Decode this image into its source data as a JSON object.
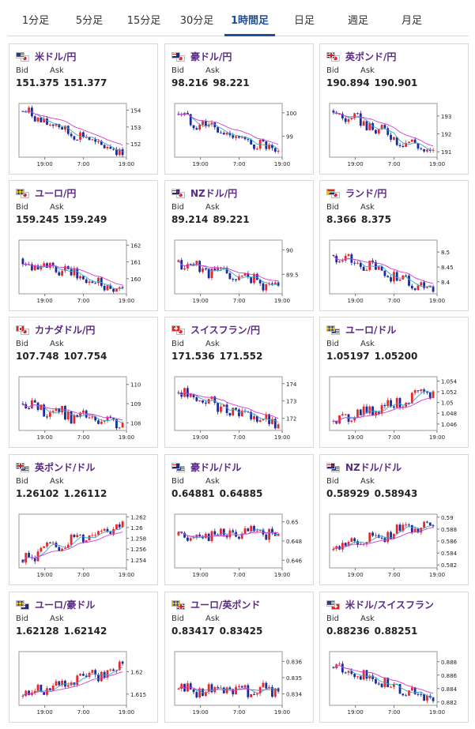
{
  "tabs": [
    {
      "label": "1分足",
      "active": false
    },
    {
      "label": "5分足",
      "active": false
    },
    {
      "label": "15分足",
      "active": false
    },
    {
      "label": "30分足",
      "active": false
    },
    {
      "label": "1時間足",
      "active": true
    },
    {
      "label": "日足",
      "active": false
    },
    {
      "label": "週足",
      "active": false
    },
    {
      "label": "月足",
      "active": false
    }
  ],
  "labels": {
    "bid": "Bid",
    "ask": "Ask"
  },
  "colors": {
    "pair_name": "#5a2a86",
    "up": "#e8262b",
    "down": "#1a2c9c",
    "ma_short": "#3aa6c8",
    "ma_long": "#d43cd4",
    "active_tab": "#1a4fa0"
  },
  "pairs": [
    {
      "name": "米ドル/円",
      "flags": [
        "us-flag",
        "jp-flag"
      ],
      "bid": "151.375",
      "ask": "151.377",
      "chart": {
        "y_ticks": [
          "154",
          "153",
          "152"
        ],
        "x_ticks": [
          "19:00",
          "7:00",
          "19:00"
        ],
        "ylim": [
          151.2,
          154.4
        ],
        "start": 153.95,
        "end": 151.4
      }
    },
    {
      "name": "豪ドル/円",
      "flags": [
        "au-flag",
        "jp-flag"
      ],
      "bid": "98.216",
      "ask": "98.221",
      "chart": {
        "y_ticks": [
          "100",
          "99"
        ],
        "x_ticks": [
          "19:00",
          "7:00",
          "19:00"
        ],
        "ylim": [
          98.1,
          100.4
        ],
        "start": 99.95,
        "end": 98.25
      }
    },
    {
      "name": "英ポンド/円",
      "flags": [
        "uk-flag",
        "jp-flag"
      ],
      "bid": "190.894",
      "ask": "190.901",
      "chart": {
        "y_ticks": [
          "193",
          "192",
          "191"
        ],
        "x_ticks": [
          "19:00",
          "7:00",
          "19:00"
        ],
        "ylim": [
          190.7,
          193.7
        ],
        "start": 193.3,
        "end": 190.95
      }
    },
    {
      "name": "ユーロ/円",
      "flags": [
        "eu-flag",
        "jp-flag"
      ],
      "bid": "159.245",
      "ask": "159.249",
      "chart": {
        "y_ticks": [
          "162",
          "161",
          "160"
        ],
        "x_ticks": [
          "19:00",
          "7:00",
          "19:00"
        ],
        "ylim": [
          159.1,
          162.3
        ],
        "start": 161.2,
        "end": 159.3
      }
    },
    {
      "name": "NZドル/円",
      "flags": [
        "nz-flag",
        "jp-flag"
      ],
      "bid": "89.214",
      "ask": "89.221",
      "chart": {
        "y_ticks": [
          "90",
          "89.5"
        ],
        "x_ticks": [
          "19:00",
          "7:00",
          "19:00"
        ],
        "ylim": [
          89.1,
          90.2
        ],
        "start": 89.75,
        "end": 89.25
      }
    },
    {
      "name": "ランド/円",
      "flags": [
        "za-flag",
        "jp-flag"
      ],
      "bid": "8.366",
      "ask": "8.375",
      "chart": {
        "y_ticks": [
          "8.5",
          "8.45",
          "8.4"
        ],
        "x_ticks": [
          "19:00",
          "7:00",
          "19:00"
        ],
        "ylim": [
          8.36,
          8.54
        ],
        "start": 8.49,
        "end": 8.375
      }
    },
    {
      "name": "カナダドル/円",
      "flags": [
        "ca-flag",
        "jp-flag"
      ],
      "bid": "107.748",
      "ask": "107.754",
      "chart": {
        "y_ticks": [
          "110",
          "109",
          "108"
        ],
        "x_ticks": [
          "19:00",
          "7:00",
          "19:00"
        ],
        "ylim": [
          107.6,
          110.4
        ],
        "start": 109.0,
        "end": 107.8
      }
    },
    {
      "name": "スイスフラン/円",
      "flags": [
        "ch-flag",
        "jp-flag"
      ],
      "bid": "171.536",
      "ask": "171.552",
      "chart": {
        "y_ticks": [
          "174",
          "173",
          "172"
        ],
        "x_ticks": [
          "19:00",
          "7:00",
          "19:00"
        ],
        "ylim": [
          171.3,
          174.4
        ],
        "start": 173.5,
        "end": 171.6
      }
    },
    {
      "name": "ユーロ/ドル",
      "flags": [
        "eu-flag",
        "us-flag"
      ],
      "bid": "1.05197",
      "ask": "1.05200",
      "chart": {
        "y_ticks": [
          "1.054",
          "1.052",
          "1.05",
          "1.048",
          "1.046"
        ],
        "x_ticks": [
          "19:00",
          "7:00",
          "19:00"
        ],
        "ylim": [
          1.0448,
          1.0548
        ],
        "start": 1.0465,
        "end": 1.052
      }
    },
    {
      "name": "英ポンド/ドル",
      "flags": [
        "uk-flag",
        "us-flag"
      ],
      "bid": "1.26102",
      "ask": "1.26112",
      "chart": {
        "y_ticks": [
          "1.262",
          "1.26",
          "1.258",
          "1.256",
          "1.254"
        ],
        "x_ticks": [
          "19:00",
          "7:00",
          "19:00"
        ],
        "ylim": [
          1.2525,
          1.2625
        ],
        "start": 1.254,
        "end": 1.261
      }
    },
    {
      "name": "豪ドル/ドル",
      "flags": [
        "au-flag",
        "us-flag"
      ],
      "bid": "0.64881",
      "ask": "0.64885",
      "chart": {
        "y_ticks": [
          "0.65",
          "0.648",
          "0.646"
        ],
        "x_ticks": [
          "19:00",
          "7:00",
          "19:00"
        ],
        "ylim": [
          0.6452,
          0.6508
        ],
        "start": 0.6486,
        "end": 0.6488
      }
    },
    {
      "name": "NZドル/ドル",
      "flags": [
        "nz-flag",
        "us-flag"
      ],
      "bid": "0.58929",
      "ask": "0.58943",
      "chart": {
        "y_ticks": [
          "0.59",
          "0.588",
          "0.586",
          "0.584",
          "0.582"
        ],
        "x_ticks": [
          "19:00",
          "7:00",
          "19:00"
        ],
        "ylim": [
          0.5815,
          0.5905
        ],
        "start": 0.5845,
        "end": 0.5893
      }
    },
    {
      "name": "ユーロ/豪ドル",
      "flags": [
        "eu-flag",
        "au-flag"
      ],
      "bid": "1.62128",
      "ask": "1.62142",
      "chart": {
        "y_ticks": [
          "1.62",
          "1.615"
        ],
        "x_ticks": [
          "19:00",
          "7:00",
          "19:00"
        ],
        "ylim": [
          1.6125,
          1.6245
        ],
        "start": 1.6145,
        "end": 1.6212
      }
    },
    {
      "name": "ユーロ/英ポンド",
      "flags": [
        "eu-flag",
        "uk-flag"
      ],
      "bid": "0.83417",
      "ask": "0.83425",
      "chart": {
        "y_ticks": [
          "0.836",
          "0.835",
          "0.834"
        ],
        "x_ticks": [
          "19:00",
          "7:00",
          "19:00"
        ],
        "ylim": [
          0.8333,
          0.8366
        ],
        "start": 0.8343,
        "end": 0.8342
      }
    },
    {
      "name": "米ドル/スイスフラン",
      "flags": [
        "us-flag",
        "ch-flag"
      ],
      "bid": "0.88236",
      "ask": "0.88251",
      "chart": {
        "y_ticks": [
          "0.888",
          "0.886",
          "0.884",
          "0.882"
        ],
        "x_ticks": [
          "19:00",
          "7:00",
          "19:00"
        ],
        "ylim": [
          0.8815,
          0.8895
        ],
        "start": 0.8872,
        "end": 0.8824
      }
    }
  ]
}
